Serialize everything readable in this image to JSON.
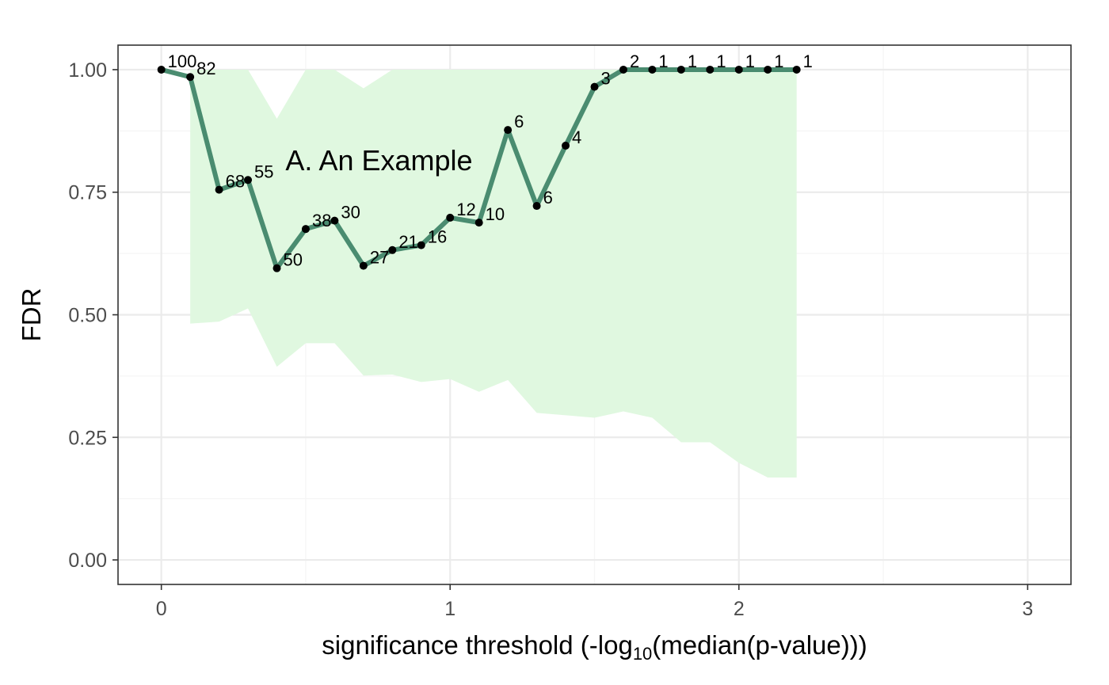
{
  "chart_data": {
    "type": "line",
    "title": "",
    "xlabel": "significance threshold (-log",
    "xlabel_sub": "10",
    "xlabel_suffix": "(median(p-value)))",
    "ylabel": "FDR",
    "xlim": [
      -0.15,
      3.15
    ],
    "ylim": [
      -0.05,
      1.05
    ],
    "x_ticks": [
      0,
      1,
      2,
      3
    ],
    "x_tick_labels": [
      "0",
      "1",
      "2",
      "3"
    ],
    "x_minor_ticks": [
      0.5,
      1.5,
      2.5
    ],
    "y_ticks": [
      0,
      0.25,
      0.5,
      0.75,
      1
    ],
    "y_tick_labels": [
      "0.00",
      "0.25",
      "0.50",
      "0.75",
      "1.00"
    ],
    "y_minor_ticks": [
      0.125,
      0.375,
      0.625,
      0.875
    ],
    "grid": true,
    "annotation": {
      "text": "A. An Example",
      "x": 0.43,
      "y": 0.795
    },
    "series": [
      {
        "x": [
          0,
          0.1,
          0.2,
          0.3,
          0.4,
          0.5,
          0.6,
          0.7,
          0.8,
          0.9,
          1.0,
          1.1,
          1.2,
          1.3,
          1.4,
          1.5,
          1.6,
          1.7,
          1.8,
          1.9,
          2.0,
          2.1,
          2.2
        ],
        "y": [
          1.0,
          0.985,
          0.755,
          0.775,
          0.595,
          0.675,
          0.692,
          0.6,
          0.632,
          0.642,
          0.698,
          0.688,
          0.877,
          0.722,
          0.845,
          0.965,
          1.0,
          1.0,
          1.0,
          1.0,
          1.0,
          1.0,
          1.0
        ],
        "labels": [
          "100",
          "82",
          "68",
          "55",
          "50",
          "38",
          "30",
          "27",
          "21",
          "16",
          "12",
          "10",
          "6",
          "6",
          "4",
          "3",
          "2",
          "1",
          "1",
          "1",
          "1",
          "1",
          "1"
        ]
      }
    ],
    "band": {
      "x": [
        0.1,
        0.2,
        0.3,
        0.4,
        0.5,
        0.6,
        0.7,
        0.8,
        0.9,
        1.0,
        1.1,
        1.2,
        1.3,
        1.4,
        1.5,
        1.6,
        1.7,
        1.8,
        1.9,
        2.0,
        2.1,
        2.2
      ],
      "lower": [
        0.482,
        0.486,
        0.513,
        0.394,
        0.442,
        0.442,
        0.376,
        0.378,
        0.363,
        0.369,
        0.343,
        0.367,
        0.3,
        0.295,
        0.29,
        0.303,
        0.29,
        0.24,
        0.24,
        0.198,
        0.168,
        0.168
      ],
      "upper": [
        1.0,
        1.0,
        1.0,
        0.9,
        1.0,
        1.0,
        0.962,
        1.0,
        1.0,
        1.0,
        1.0,
        1.0,
        1.0,
        1.0,
        1.0,
        1.0,
        1.0,
        1.0,
        1.0,
        1.0,
        1.0,
        1.0
      ]
    },
    "colors": {
      "line": "#4a8c70",
      "band": "#e0f8e0",
      "point": "#000000",
      "grid_major": "#ebebeb",
      "grid_minor": "#f5f5f5",
      "border": "#333333"
    }
  }
}
